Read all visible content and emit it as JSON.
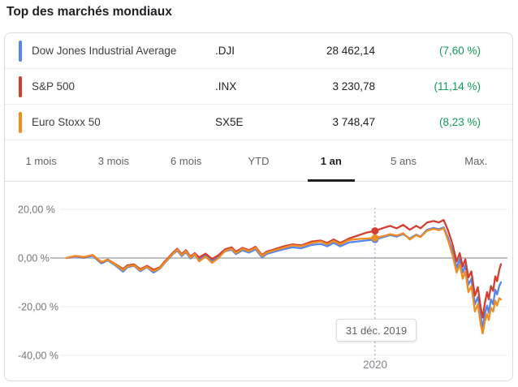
{
  "title": "Top des marchés mondiaux",
  "table": {
    "rows": [
      {
        "name": "Dow Jones Industrial Average",
        "ticker": ".DJI",
        "value": "28 462,14",
        "change": "(7,60 %)",
        "color": "#5686EC"
      },
      {
        "name": "S&P 500",
        "ticker": ".INX",
        "value": "3 230,78",
        "change": "(11,14 %)",
        "color": "#D23F31"
      },
      {
        "name": "Euro Stoxx 50",
        "ticker": "SX5E",
        "value": "3 748,47",
        "change": "(8,23 %)",
        "color": "#EF8D22"
      }
    ],
    "change_color": "#0F9D58"
  },
  "tabs": {
    "items": [
      {
        "label": "1 mois"
      },
      {
        "label": "3 mois"
      },
      {
        "label": "6 mois"
      },
      {
        "label": "YTD"
      },
      {
        "label": "1 an"
      },
      {
        "label": "5 ans"
      },
      {
        "label": "Max."
      }
    ],
    "selected_index": 4,
    "selected_label": "1 an"
  },
  "chart": {
    "tooltip_date": "31 déc. 2019",
    "x_tick_label": "2020"
  },
  "chart_data": {
    "type": "line",
    "title": "Top des marchés mondiaux — 1 an (variation %)",
    "ylabel": "%",
    "ylim": [
      -45,
      25
    ],
    "grid": true,
    "yticks": [
      {
        "value": 20,
        "label": "20,00 %"
      },
      {
        "value": 0,
        "label": "0,00 %"
      },
      {
        "value": -20,
        "label": "-20,00 %"
      },
      {
        "value": -40,
        "label": "-40,00 %"
      }
    ],
    "x_axis": {
      "type": "time-fraction",
      "range": [
        0,
        1
      ],
      "tick": {
        "t": 0.71,
        "label": "2020"
      }
    },
    "annotation": {
      "t": 0.71,
      "label": "31 déc. 2019",
      "markers": [
        {
          "series": "S&P 500",
          "value": 11.14
        },
        {
          "series": "Euro Stoxx 50",
          "value": 8.23
        },
        {
          "series": "Dow Jones Industrial Average",
          "value": 7.6
        }
      ]
    },
    "series": [
      {
        "name": "Dow Jones Industrial Average",
        "color": "#5686EC",
        "points": [
          [
            0,
            0
          ],
          [
            0.02,
            0.6
          ],
          [
            0.04,
            0.1
          ],
          [
            0.06,
            0.9
          ],
          [
            0.08,
            -2.2
          ],
          [
            0.095,
            -1.0
          ],
          [
            0.115,
            -3.4
          ],
          [
            0.13,
            -5.6
          ],
          [
            0.14,
            -3.8
          ],
          [
            0.155,
            -3.2
          ],
          [
            0.17,
            -5.4
          ],
          [
            0.185,
            -3.8
          ],
          [
            0.2,
            -6.0
          ],
          [
            0.215,
            -4.4
          ],
          [
            0.225,
            -2.2
          ],
          [
            0.245,
            1.6
          ],
          [
            0.255,
            3.0
          ],
          [
            0.265,
            0.8
          ],
          [
            0.275,
            2.4
          ],
          [
            0.285,
            -0.2
          ],
          [
            0.295,
            1.2
          ],
          [
            0.305,
            -0.6
          ],
          [
            0.32,
            1.0
          ],
          [
            0.335,
            -1.2
          ],
          [
            0.35,
            0.4
          ],
          [
            0.365,
            2.8
          ],
          [
            0.38,
            3.4
          ],
          [
            0.39,
            1.6
          ],
          [
            0.405,
            3.2
          ],
          [
            0.42,
            2.2
          ],
          [
            0.435,
            3.6
          ],
          [
            0.45,
            0.2
          ],
          [
            0.46,
            1.6
          ],
          [
            0.475,
            2.4
          ],
          [
            0.5,
            3.6
          ],
          [
            0.52,
            4.4
          ],
          [
            0.54,
            4.0
          ],
          [
            0.565,
            5.4
          ],
          [
            0.585,
            5.8
          ],
          [
            0.6,
            4.8
          ],
          [
            0.615,
            6.2
          ],
          [
            0.63,
            4.8
          ],
          [
            0.65,
            6.4
          ],
          [
            0.67,
            6.8
          ],
          [
            0.69,
            7.2
          ],
          [
            0.71,
            7.6
          ],
          [
            0.73,
            8.6
          ],
          [
            0.745,
            9.4
          ],
          [
            0.76,
            8.8
          ],
          [
            0.775,
            9.8
          ],
          [
            0.79,
            8.0
          ],
          [
            0.805,
            9.6
          ],
          [
            0.815,
            8.8
          ],
          [
            0.83,
            11.6
          ],
          [
            0.845,
            12.4
          ],
          [
            0.857,
            11.8
          ],
          [
            0.868,
            12.6
          ],
          [
            0.878,
            8.5
          ],
          [
            0.888,
            3.0
          ],
          [
            0.898,
            -4.0
          ],
          [
            0.905,
            -0.5
          ],
          [
            0.912,
            -6.0
          ],
          [
            0.918,
            -3.0
          ],
          [
            0.925,
            -11.0
          ],
          [
            0.932,
            -8.5
          ],
          [
            0.94,
            -19.0
          ],
          [
            0.947,
            -16.0
          ],
          [
            0.953,
            -24.0
          ],
          [
            0.958,
            -28.5
          ],
          [
            0.963,
            -23.0
          ],
          [
            0.968,
            -19.5
          ],
          [
            0.972,
            -22.5
          ],
          [
            0.977,
            -17.0
          ],
          [
            0.982,
            -19.0
          ],
          [
            0.987,
            -13.0
          ],
          [
            0.991,
            -15.0
          ],
          [
            0.996,
            -11.5
          ],
          [
            1,
            -10.0
          ]
        ]
      },
      {
        "name": "S&P 500",
        "color": "#D23F31",
        "points": [
          [
            0,
            0
          ],
          [
            0.02,
            0.8
          ],
          [
            0.04,
            0.3
          ],
          [
            0.06,
            1.2
          ],
          [
            0.08,
            -1.8
          ],
          [
            0.095,
            -0.6
          ],
          [
            0.115,
            -2.8
          ],
          [
            0.13,
            -4.5
          ],
          [
            0.14,
            -3.0
          ],
          [
            0.155,
            -2.6
          ],
          [
            0.17,
            -4.6
          ],
          [
            0.185,
            -3.2
          ],
          [
            0.2,
            -4.8
          ],
          [
            0.215,
            -3.8
          ],
          [
            0.225,
            -1.6
          ],
          [
            0.245,
            2.2
          ],
          [
            0.255,
            3.8
          ],
          [
            0.265,
            1.6
          ],
          [
            0.275,
            3.2
          ],
          [
            0.285,
            0.6
          ],
          [
            0.295,
            2.0
          ],
          [
            0.305,
            0.2
          ],
          [
            0.32,
            1.8
          ],
          [
            0.335,
            -0.4
          ],
          [
            0.35,
            1.2
          ],
          [
            0.365,
            3.6
          ],
          [
            0.38,
            4.4
          ],
          [
            0.39,
            2.6
          ],
          [
            0.405,
            4.2
          ],
          [
            0.42,
            3.2
          ],
          [
            0.435,
            4.6
          ],
          [
            0.45,
            1.2
          ],
          [
            0.46,
            2.6
          ],
          [
            0.475,
            3.4
          ],
          [
            0.5,
            4.8
          ],
          [
            0.52,
            5.6
          ],
          [
            0.54,
            5.2
          ],
          [
            0.565,
            6.8
          ],
          [
            0.585,
            7.2
          ],
          [
            0.6,
            6.2
          ],
          [
            0.615,
            7.6
          ],
          [
            0.63,
            6.2
          ],
          [
            0.65,
            8.0
          ],
          [
            0.67,
            9.2
          ],
          [
            0.69,
            10.4
          ],
          [
            0.71,
            11.14
          ],
          [
            0.73,
            12.4
          ],
          [
            0.745,
            13.2
          ],
          [
            0.76,
            12.2
          ],
          [
            0.775,
            13.6
          ],
          [
            0.79,
            11.6
          ],
          [
            0.805,
            13.2
          ],
          [
            0.815,
            12.2
          ],
          [
            0.83,
            14.6
          ],
          [
            0.845,
            15.2
          ],
          [
            0.857,
            14.6
          ],
          [
            0.868,
            15.6
          ],
          [
            0.878,
            11.5
          ],
          [
            0.888,
            6.0
          ],
          [
            0.898,
            -1.5
          ],
          [
            0.905,
            2.0
          ],
          [
            0.912,
            -3.5
          ],
          [
            0.918,
            -0.5
          ],
          [
            0.925,
            -8.0
          ],
          [
            0.932,
            -5.5
          ],
          [
            0.94,
            -15.5
          ],
          [
            0.947,
            -12.0
          ],
          [
            0.953,
            -20.0
          ],
          [
            0.958,
            -24.5
          ],
          [
            0.963,
            -18.5
          ],
          [
            0.968,
            -14.0
          ],
          [
            0.972,
            -17.0
          ],
          [
            0.977,
            -11.5
          ],
          [
            0.982,
            -13.5
          ],
          [
            0.987,
            -7.5
          ],
          [
            0.991,
            -9.5
          ],
          [
            0.996,
            -5.0
          ],
          [
            1,
            -2.5
          ]
        ]
      },
      {
        "name": "Euro Stoxx 50",
        "color": "#EF8D22",
        "points": [
          [
            0,
            0
          ],
          [
            0.02,
            0.9
          ],
          [
            0.04,
            0.4
          ],
          [
            0.06,
            1.3
          ],
          [
            0.08,
            -1.6
          ],
          [
            0.095,
            -0.8
          ],
          [
            0.115,
            -3.0
          ],
          [
            0.13,
            -5.0
          ],
          [
            0.14,
            -3.4
          ],
          [
            0.155,
            -3.0
          ],
          [
            0.17,
            -5.0
          ],
          [
            0.185,
            -3.6
          ],
          [
            0.2,
            -5.4
          ],
          [
            0.215,
            -4.2
          ],
          [
            0.225,
            -2.0
          ],
          [
            0.245,
            1.8
          ],
          [
            0.255,
            3.4
          ],
          [
            0.265,
            1.2
          ],
          [
            0.275,
            2.8
          ],
          [
            0.285,
            0.2
          ],
          [
            0.295,
            1.6
          ],
          [
            0.305,
            -1.4
          ],
          [
            0.32,
            0.6
          ],
          [
            0.335,
            -2.0
          ],
          [
            0.35,
            0.0
          ],
          [
            0.365,
            3.0
          ],
          [
            0.38,
            3.8
          ],
          [
            0.39,
            2.0
          ],
          [
            0.405,
            3.8
          ],
          [
            0.42,
            2.8
          ],
          [
            0.435,
            4.2
          ],
          [
            0.45,
            0.8
          ],
          [
            0.46,
            2.2
          ],
          [
            0.475,
            3.0
          ],
          [
            0.5,
            4.2
          ],
          [
            0.52,
            5.2
          ],
          [
            0.54,
            4.8
          ],
          [
            0.565,
            6.2
          ],
          [
            0.585,
            6.8
          ],
          [
            0.6,
            5.6
          ],
          [
            0.615,
            7.0
          ],
          [
            0.63,
            5.6
          ],
          [
            0.65,
            7.4
          ],
          [
            0.67,
            7.8
          ],
          [
            0.69,
            8.0
          ],
          [
            0.71,
            8.23
          ],
          [
            0.73,
            9.0
          ],
          [
            0.745,
            9.8
          ],
          [
            0.76,
            9.2
          ],
          [
            0.775,
            10.2
          ],
          [
            0.79,
            7.6
          ],
          [
            0.805,
            9.4
          ],
          [
            0.815,
            8.6
          ],
          [
            0.83,
            11.2
          ],
          [
            0.845,
            12.0
          ],
          [
            0.857,
            11.4
          ],
          [
            0.868,
            12.2
          ],
          [
            0.878,
            7.5
          ],
          [
            0.888,
            1.5
          ],
          [
            0.898,
            -6.0
          ],
          [
            0.905,
            -2.5
          ],
          [
            0.912,
            -8.5
          ],
          [
            0.918,
            -5.5
          ],
          [
            0.925,
            -14.0
          ],
          [
            0.932,
            -11.5
          ],
          [
            0.94,
            -22.0
          ],
          [
            0.947,
            -19.0
          ],
          [
            0.953,
            -27.0
          ],
          [
            0.958,
            -31.0
          ],
          [
            0.963,
            -26.0
          ],
          [
            0.968,
            -23.0
          ],
          [
            0.972,
            -25.5
          ],
          [
            0.977,
            -20.5
          ],
          [
            0.982,
            -22.0
          ],
          [
            0.987,
            -17.5
          ],
          [
            0.991,
            -19.5
          ],
          [
            0.996,
            -16.5
          ],
          [
            1,
            -17.0
          ]
        ]
      }
    ]
  }
}
